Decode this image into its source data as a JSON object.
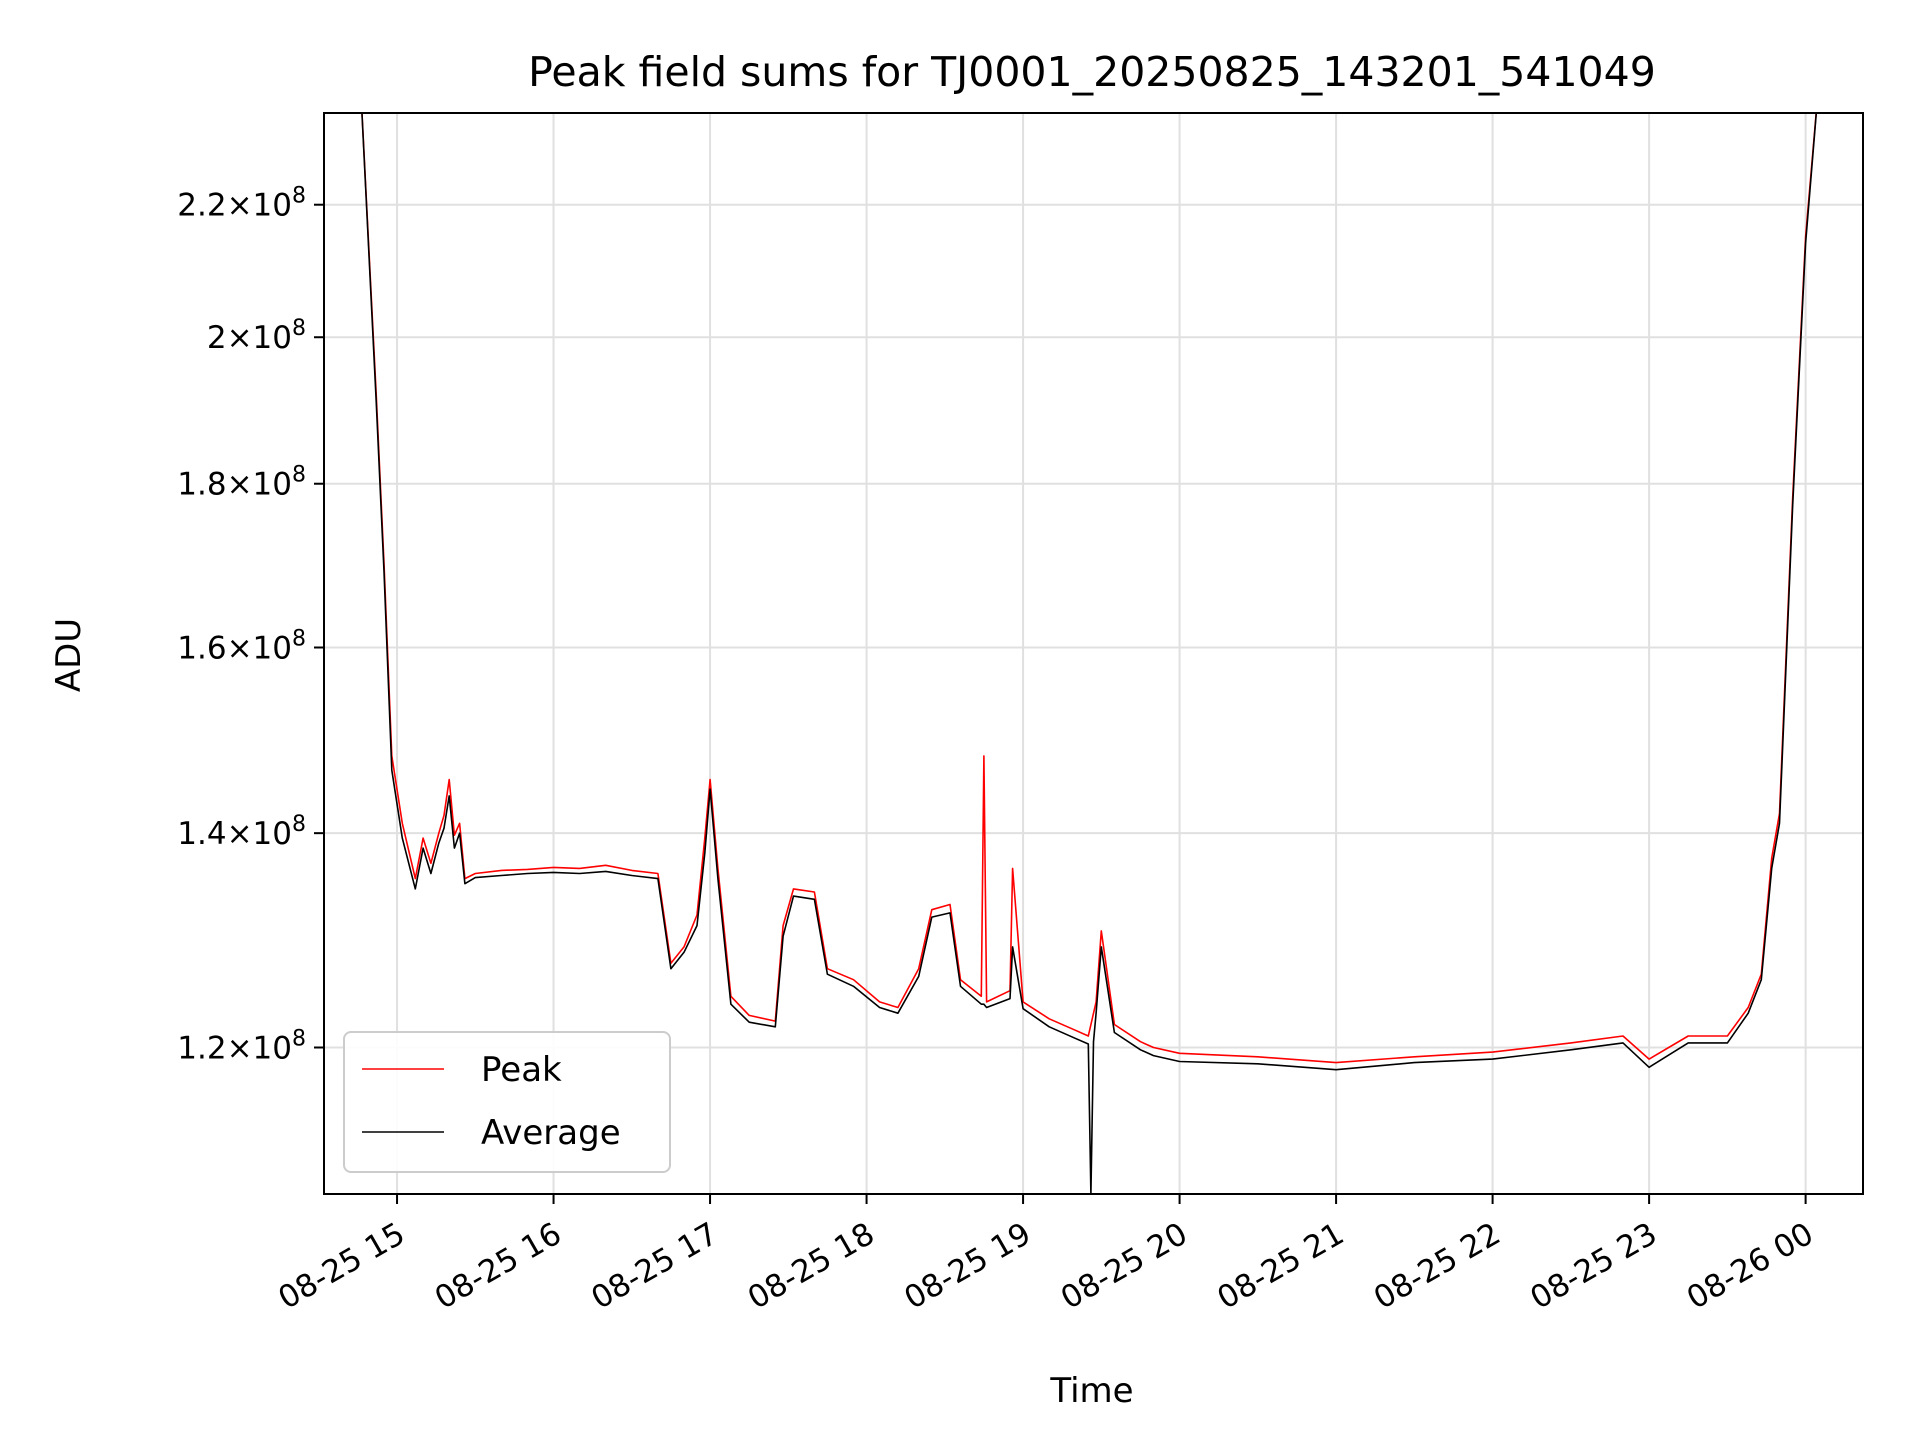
{
  "chart_data": {
    "type": "line",
    "title": "Peak field sums for TJ0001_20250825_143201_541049",
    "xlabel": "Time",
    "ylabel": "ADU",
    "x_range": [
      "2025-08-25 14:32",
      "2025-08-26 00:22"
    ],
    "y_range": [
      108000000,
      235000000
    ],
    "y_scale": "log",
    "grid": true,
    "legend_position": "lower-left",
    "x_ticks": [
      {
        "value": "2025-08-25 15:00",
        "label": "08-25 15"
      },
      {
        "value": "2025-08-25 16:00",
        "label": "08-25 16"
      },
      {
        "value": "2025-08-25 17:00",
        "label": "08-25 17"
      },
      {
        "value": "2025-08-25 18:00",
        "label": "08-25 18"
      },
      {
        "value": "2025-08-25 19:00",
        "label": "08-25 19"
      },
      {
        "value": "2025-08-25 20:00",
        "label": "08-25 20"
      },
      {
        "value": "2025-08-25 21:00",
        "label": "08-25 21"
      },
      {
        "value": "2025-08-25 22:00",
        "label": "08-25 22"
      },
      {
        "value": "2025-08-25 23:00",
        "label": "08-25 23"
      },
      {
        "value": "2025-08-26 00:00",
        "label": "08-26 00"
      }
    ],
    "y_ticks": [
      {
        "value": 120000000,
        "mantissa": "1.2",
        "exponent": "8"
      },
      {
        "value": 140000000,
        "mantissa": "1.4",
        "exponent": "8"
      },
      {
        "value": 160000000,
        "mantissa": "1.6",
        "exponent": "8"
      },
      {
        "value": 180000000,
        "mantissa": "1.8",
        "exponent": "8"
      },
      {
        "value": 200000000,
        "mantissa": "2",
        "exponent": "8"
      },
      {
        "value": 220000000,
        "mantissa": "2.2",
        "exponent": "8"
      }
    ],
    "series": [
      {
        "name": "Peak",
        "color": "#ff0000",
        "points": [
          [
            "2025-08-25 14:46",
            240000000
          ],
          [
            "2025-08-25 14:52",
            192000000
          ],
          [
            "2025-08-25 14:55",
            170000000
          ],
          [
            "2025-08-25 14:58",
            148000000
          ],
          [
            "2025-08-25 15:02",
            141000000
          ],
          [
            "2025-08-25 15:07",
            135500000
          ],
          [
            "2025-08-25 15:10",
            139500000
          ],
          [
            "2025-08-25 15:13",
            137000000
          ],
          [
            "2025-08-25 15:16",
            140000000
          ],
          [
            "2025-08-25 15:18",
            141800000
          ],
          [
            "2025-08-25 15:20",
            145500000
          ],
          [
            "2025-08-25 15:22",
            139800000
          ],
          [
            "2025-08-25 15:24",
            141000000
          ],
          [
            "2025-08-25 15:26",
            135500000
          ],
          [
            "2025-08-25 15:30",
            136000000
          ],
          [
            "2025-08-25 15:40",
            136300000
          ],
          [
            "2025-08-25 15:50",
            136400000
          ],
          [
            "2025-08-25 16:00",
            136600000
          ],
          [
            "2025-08-25 16:10",
            136500000
          ],
          [
            "2025-08-25 16:20",
            136800000
          ],
          [
            "2025-08-25 16:30",
            136300000
          ],
          [
            "2025-08-25 16:40",
            136000000
          ],
          [
            "2025-08-25 16:45",
            127500000
          ],
          [
            "2025-08-25 16:50",
            129000000
          ],
          [
            "2025-08-25 16:55",
            132000000
          ],
          [
            "2025-08-25 16:58",
            139500000
          ],
          [
            "2025-08-25 17:00",
            145500000
          ],
          [
            "2025-08-25 17:03",
            136500000
          ],
          [
            "2025-08-25 17:08",
            124500000
          ],
          [
            "2025-08-25 17:15",
            122800000
          ],
          [
            "2025-08-25 17:25",
            122300000
          ],
          [
            "2025-08-25 17:28",
            131000000
          ],
          [
            "2025-08-25 17:32",
            134500000
          ],
          [
            "2025-08-25 17:40",
            134200000
          ],
          [
            "2025-08-25 17:45",
            127000000
          ],
          [
            "2025-08-25 17:55",
            126000000
          ],
          [
            "2025-08-25 18:05",
            124000000
          ],
          [
            "2025-08-25 18:12",
            123500000
          ],
          [
            "2025-08-25 18:20",
            127000000
          ],
          [
            "2025-08-25 18:25",
            132500000
          ],
          [
            "2025-08-25 18:32",
            133000000
          ],
          [
            "2025-08-25 18:36",
            126000000
          ],
          [
            "2025-08-25 18:44",
            124500000
          ],
          [
            "2025-08-25 18:45",
            148000000
          ],
          [
            "2025-08-25 18:46",
            124000000
          ],
          [
            "2025-08-25 18:55",
            125000000
          ],
          [
            "2025-08-25 18:56",
            136500000
          ],
          [
            "2025-08-25 19:00",
            124000000
          ],
          [
            "2025-08-25 19:10",
            122500000
          ],
          [
            "2025-08-25 19:20",
            121500000
          ],
          [
            "2025-08-25 19:25",
            121000000
          ],
          [
            "2025-08-25 19:28",
            124000000
          ],
          [
            "2025-08-25 19:30",
            130500000
          ],
          [
            "2025-08-25 19:35",
            122000000
          ],
          [
            "2025-08-25 19:45",
            120500000
          ],
          [
            "2025-08-25 19:50",
            120000000
          ],
          [
            "2025-08-25 20:00",
            119500000
          ],
          [
            "2025-08-25 20:30",
            119200000
          ],
          [
            "2025-08-25 21:00",
            118700000
          ],
          [
            "2025-08-25 21:30",
            119200000
          ],
          [
            "2025-08-25 22:00",
            119600000
          ],
          [
            "2025-08-25 22:30",
            120400000
          ],
          [
            "2025-08-25 22:50",
            121000000
          ],
          [
            "2025-08-25 23:00",
            119000000
          ],
          [
            "2025-08-25 23:15",
            121000000
          ],
          [
            "2025-08-25 23:30",
            121000000
          ],
          [
            "2025-08-25 23:38",
            123500000
          ],
          [
            "2025-08-25 23:43",
            126500000
          ],
          [
            "2025-08-25 23:47",
            137500000
          ],
          [
            "2025-08-25 23:50",
            142000000
          ],
          [
            "2025-08-25 23:55",
            178000000
          ],
          [
            "2025-08-26 00:00",
            215000000
          ],
          [
            "2025-08-26 00:05",
            240000000
          ]
        ]
      },
      {
        "name": "Average",
        "color": "#000000",
        "points": [
          [
            "2025-08-25 14:46",
            240000000
          ],
          [
            "2025-08-25 14:52",
            191000000
          ],
          [
            "2025-08-25 14:55",
            169000000
          ],
          [
            "2025-08-25 14:58",
            146500000
          ],
          [
            "2025-08-25 15:02",
            139500000
          ],
          [
            "2025-08-25 15:07",
            134500000
          ],
          [
            "2025-08-25 15:10",
            138500000
          ],
          [
            "2025-08-25 15:13",
            136000000
          ],
          [
            "2025-08-25 15:16",
            139000000
          ],
          [
            "2025-08-25 15:18",
            140500000
          ],
          [
            "2025-08-25 15:20",
            143800000
          ],
          [
            "2025-08-25 15:22",
            138500000
          ],
          [
            "2025-08-25 15:24",
            140000000
          ],
          [
            "2025-08-25 15:26",
            135000000
          ],
          [
            "2025-08-25 15:30",
            135600000
          ],
          [
            "2025-08-25 15:40",
            135800000
          ],
          [
            "2025-08-25 15:50",
            136000000
          ],
          [
            "2025-08-25 16:00",
            136100000
          ],
          [
            "2025-08-25 16:10",
            136000000
          ],
          [
            "2025-08-25 16:20",
            136200000
          ],
          [
            "2025-08-25 16:30",
            135800000
          ],
          [
            "2025-08-25 16:40",
            135500000
          ],
          [
            "2025-08-25 16:45",
            127000000
          ],
          [
            "2025-08-25 16:50",
            128500000
          ],
          [
            "2025-08-25 16:55",
            131000000
          ],
          [
            "2025-08-25 16:58",
            138000000
          ],
          [
            "2025-08-25 17:00",
            144500000
          ],
          [
            "2025-08-25 17:03",
            135500000
          ],
          [
            "2025-08-25 17:08",
            123800000
          ],
          [
            "2025-08-25 17:15",
            122200000
          ],
          [
            "2025-08-25 17:25",
            121800000
          ],
          [
            "2025-08-25 17:28",
            130000000
          ],
          [
            "2025-08-25 17:32",
            133800000
          ],
          [
            "2025-08-25 17:40",
            133500000
          ],
          [
            "2025-08-25 17:45",
            126500000
          ],
          [
            "2025-08-25 17:55",
            125400000
          ],
          [
            "2025-08-25 18:05",
            123500000
          ],
          [
            "2025-08-25 18:12",
            123000000
          ],
          [
            "2025-08-25 18:20",
            126300000
          ],
          [
            "2025-08-25 18:25",
            131800000
          ],
          [
            "2025-08-25 18:32",
            132200000
          ],
          [
            "2025-08-25 18:36",
            125400000
          ],
          [
            "2025-08-25 18:44",
            123800000
          ],
          [
            "2025-08-25 18:45",
            123800000
          ],
          [
            "2025-08-25 18:46",
            123500000
          ],
          [
            "2025-08-25 18:55",
            124300000
          ],
          [
            "2025-08-25 18:56",
            129000000
          ],
          [
            "2025-08-25 19:00",
            123400000
          ],
          [
            "2025-08-25 19:10",
            121800000
          ],
          [
            "2025-08-25 19:20",
            120800000
          ],
          [
            "2025-08-25 19:25",
            120300000
          ],
          [
            "2025-08-25 19:26",
            108000000
          ],
          [
            "2025-08-25 19:27",
            120500000
          ],
          [
            "2025-08-25 19:28",
            123000000
          ],
          [
            "2025-08-25 19:30",
            129000000
          ],
          [
            "2025-08-25 19:35",
            121300000
          ],
          [
            "2025-08-25 19:45",
            119800000
          ],
          [
            "2025-08-25 19:50",
            119300000
          ],
          [
            "2025-08-25 20:00",
            118800000
          ],
          [
            "2025-08-25 20:30",
            118600000
          ],
          [
            "2025-08-25 21:00",
            118100000
          ],
          [
            "2025-08-25 21:30",
            118700000
          ],
          [
            "2025-08-25 22:00",
            119000000
          ],
          [
            "2025-08-25 22:30",
            119800000
          ],
          [
            "2025-08-25 22:50",
            120400000
          ],
          [
            "2025-08-25 23:00",
            118300000
          ],
          [
            "2025-08-25 23:15",
            120400000
          ],
          [
            "2025-08-25 23:30",
            120400000
          ],
          [
            "2025-08-25 23:38",
            123000000
          ],
          [
            "2025-08-25 23:43",
            126000000
          ],
          [
            "2025-08-25 23:47",
            136500000
          ],
          [
            "2025-08-25 23:50",
            141000000
          ],
          [
            "2025-08-25 23:55",
            177000000
          ],
          [
            "2025-08-26 00:00",
            214000000
          ],
          [
            "2025-08-26 00:05",
            240000000
          ]
        ]
      }
    ]
  }
}
